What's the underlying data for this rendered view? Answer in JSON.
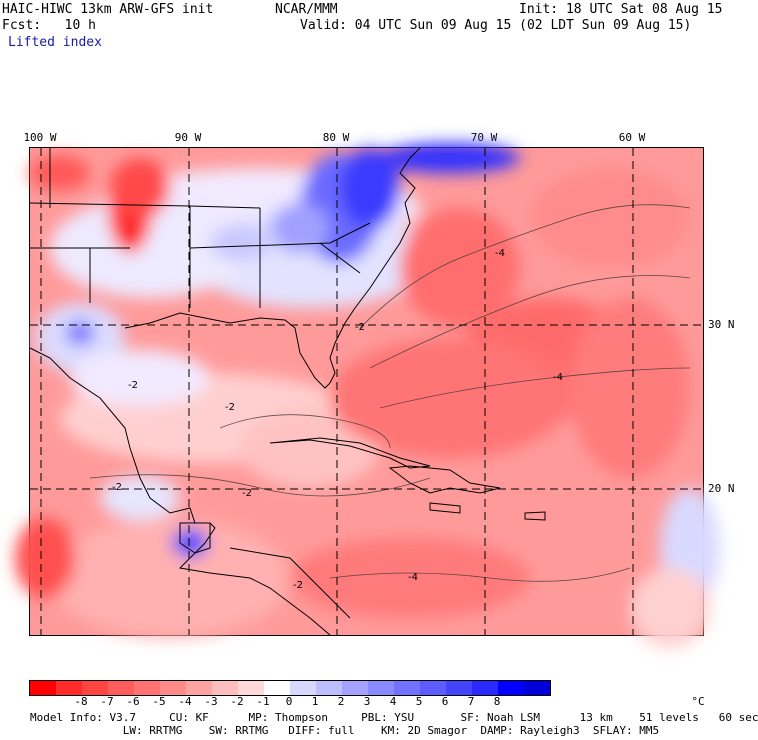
{
  "header": {
    "title": "HAIC-HIWC 13km ARW-GFS init",
    "org": "NCAR/MMM",
    "init": "Init: 18 UTC Sat 08 Aug 15",
    "fcst": "Fcst:   10 h",
    "valid": "Valid: 04 UTC Sun 09 Aug 15 (02 LDT Sun 09 Aug 15)",
    "field": "Lifted index"
  },
  "map": {
    "lon_labels": [
      "100 W",
      "90 W",
      "80 W",
      "70 W",
      "60 W"
    ],
    "lat_labels": [
      "30 N",
      "20 N"
    ],
    "contour_labels": [
      "-2",
      "-4",
      "-2",
      "-4",
      "-2",
      "-2",
      "-4",
      "-2",
      "-2"
    ]
  },
  "colorbar": {
    "colors": [
      "#ff0000",
      "#ff2a2a",
      "#ff4444",
      "#ff5c5c",
      "#ff7272",
      "#ff8a8a",
      "#ffa3a3",
      "#ffbdbd",
      "#ffd8d8",
      "#ffffff",
      "#d8d8ff",
      "#bdbdff",
      "#a3a3ff",
      "#8a8aff",
      "#7272ff",
      "#5c5cff",
      "#4444ff",
      "#2a2aff",
      "#0000ff",
      "#0000d8"
    ],
    "ticks": [
      "-8",
      "-7",
      "-6",
      "-5",
      "-4",
      "-3",
      "-2",
      "-1",
      "0",
      "1",
      "2",
      "3",
      "4",
      "5",
      "6",
      "7",
      "8"
    ],
    "unit": "°C"
  },
  "model_info": {
    "line1": "Model Info: V3.7     CU: KF      MP: Thompson     PBL: YSU       SF: Noah LSM      13 km    51 levels   60 sec",
    "line2": "              LW: RRTMG    SW: RRTMG   DIFF: full    KM: 2D Smagor  DAMP: Rayleigh3  SFLAY: MM5"
  }
}
